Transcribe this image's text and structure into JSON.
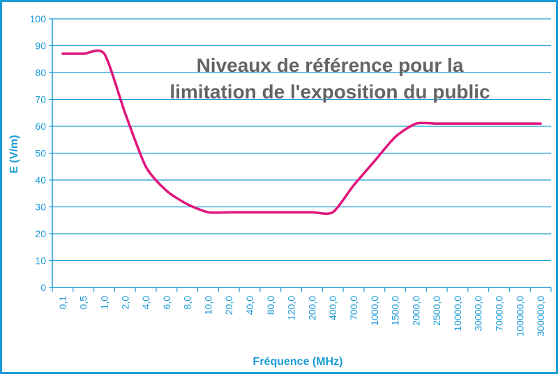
{
  "chart_data": {
    "type": "line",
    "title_lines": [
      "Niveaux de référence pour la",
      "limitation de l'exposition du public"
    ],
    "xlabel": "Fréquence (MHz)",
    "ylabel": "E (V/m)",
    "categories": [
      "0,1",
      "0,5",
      "1,0",
      "2,0",
      "4,0",
      "6,0",
      "8,0",
      "10,0",
      "20,0",
      "40,0",
      "80,0",
      "120,0",
      "200,0",
      "400,0",
      "700,0",
      "1000,0",
      "1500,0",
      "2000,0",
      "2500,0",
      "10000,0",
      "30000,0",
      "70000,0",
      "100000,0",
      "300000,0"
    ],
    "yticks": [
      0,
      10,
      20,
      30,
      40,
      50,
      60,
      70,
      80,
      90,
      100
    ],
    "ylim": [
      0,
      100
    ],
    "grid": true,
    "series": [
      {
        "values": [
          87,
          87,
          87,
          65,
          45,
          36,
          31,
          28,
          28,
          28,
          28,
          28,
          28,
          28,
          38,
          47,
          56,
          61,
          61,
          61,
          61,
          61,
          61,
          61
        ]
      }
    ],
    "colors": {
      "line": "#e0147c",
      "axis": "#1a9bd7",
      "grid": "#1a9bd7",
      "title": "#646464",
      "border": "#1a9bd7"
    }
  }
}
